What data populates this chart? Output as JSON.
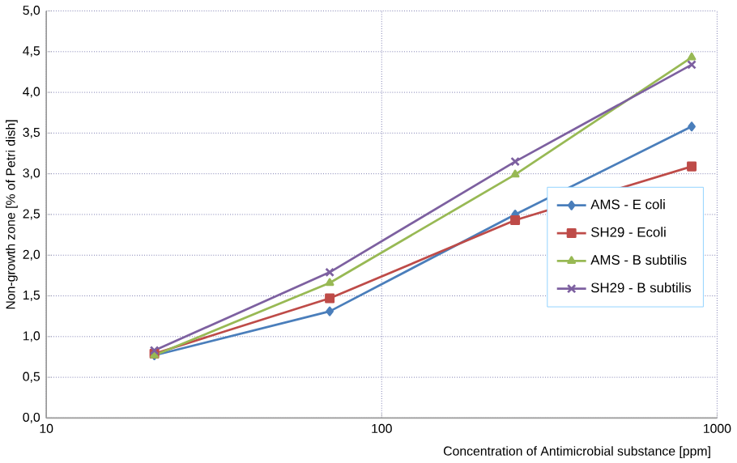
{
  "chart_data": {
    "type": "line",
    "xlabel": "Concentration of Antimicrobial substance [ppm]",
    "ylabel": "Non-growth zone [% of Petri dish]",
    "x": [
      21,
      70,
      250,
      840
    ],
    "log": "x",
    "xlim": [
      10,
      1000
    ],
    "xticks": [
      10,
      100,
      1000
    ],
    "ylim": [
      0,
      5
    ],
    "yticks": [
      {
        "value": 0,
        "label": "0,0"
      },
      {
        "value": 0.5,
        "label": "0,5"
      },
      {
        "value": 1,
        "label": "1,0"
      },
      {
        "value": 1.5,
        "label": "1,5"
      },
      {
        "value": 2,
        "label": "2,0"
      },
      {
        "value": 2.5,
        "label": "2,5"
      },
      {
        "value": 3,
        "label": "3,0"
      },
      {
        "value": 3.5,
        "label": "3,5"
      },
      {
        "value": 4,
        "label": "4,0"
      },
      {
        "value": 4.5,
        "label": "4,5"
      },
      {
        "value": 5,
        "label": "5,0"
      }
    ],
    "grid": true,
    "legend": "right",
    "series": [
      {
        "name": "AMS - E coli",
        "color": "#4a7ebb",
        "marker": "diamond",
        "values": [
          0.77,
          1.31,
          2.5,
          3.58
        ]
      },
      {
        "name": "SH29 - Ecoli",
        "color": "#be4b48",
        "marker": "square",
        "values": [
          0.79,
          1.47,
          2.43,
          3.09
        ]
      },
      {
        "name": "AMS - B subtilis",
        "color": "#98b954",
        "marker": "triangle",
        "values": [
          0.77,
          1.66,
          2.99,
          4.43
        ]
      },
      {
        "name": "SH29 - B subtilis",
        "color": "#7d60a0",
        "marker": "cross",
        "values": [
          0.83,
          1.79,
          3.15,
          4.34
        ]
      }
    ]
  }
}
